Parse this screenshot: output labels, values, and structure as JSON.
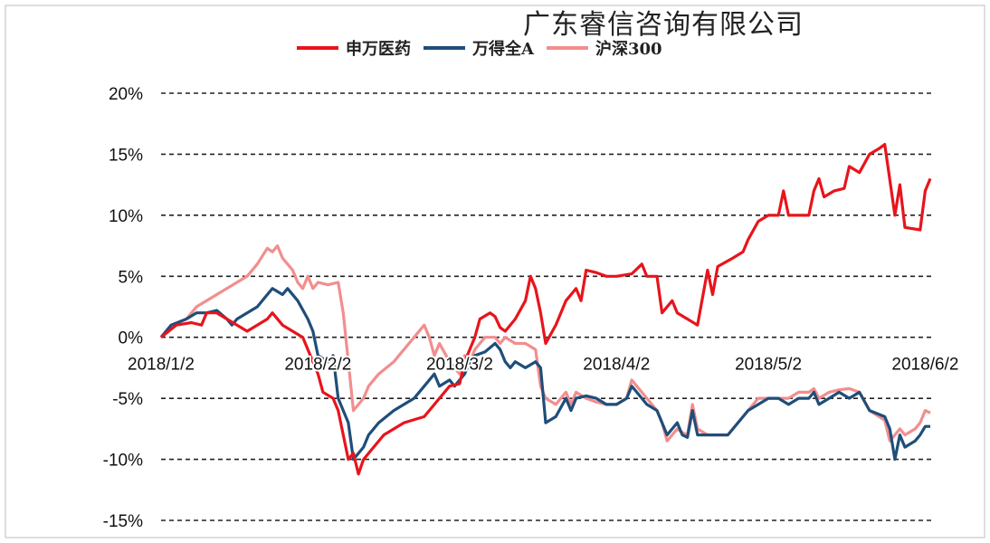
{
  "watermark": "广东睿信咨询有限公司",
  "chart_data": {
    "type": "line",
    "title": "",
    "xlabel": "",
    "ylabel": "",
    "ylim": [
      -15,
      20
    ],
    "yticks": [
      "20%",
      "15%",
      "10%",
      "5%",
      "0%",
      "-5%",
      "-10%",
      "-15%"
    ],
    "ytick_values": [
      20,
      15,
      10,
      5,
      0,
      -5,
      -10,
      -15
    ],
    "xticks": [
      "2018/1/2",
      "2018/2/2",
      "2018/3/2",
      "2018/4/2",
      "2018/5/2",
      "2018/6/2"
    ],
    "xtick_days": [
      0,
      31,
      59,
      90,
      120,
      151
    ],
    "grid": "horizontal-dashed",
    "legend_position": "top-center",
    "series": [
      {
        "name": "申万医药",
        "color": "#e8141c",
        "points": [
          [
            0,
            0
          ],
          [
            3,
            1
          ],
          [
            6,
            1.2
          ],
          [
            8,
            1
          ],
          [
            9,
            2
          ],
          [
            11,
            2
          ],
          [
            13,
            1.5
          ],
          [
            15,
            1
          ],
          [
            17,
            0.5
          ],
          [
            19,
            1
          ],
          [
            21,
            1.5
          ],
          [
            22,
            2
          ],
          [
            24,
            1
          ],
          [
            26,
            0.5
          ],
          [
            28,
            0
          ],
          [
            29,
            -1
          ],
          [
            30,
            -2
          ],
          [
            31,
            -3
          ],
          [
            32,
            -4.5
          ],
          [
            34,
            -5
          ],
          [
            35,
            -6
          ],
          [
            36,
            -8
          ],
          [
            37,
            -10
          ],
          [
            38,
            -9.5
          ],
          [
            39,
            -11.2
          ],
          [
            40,
            -10
          ],
          [
            42,
            -9
          ],
          [
            44,
            -8
          ],
          [
            48,
            -7
          ],
          [
            52,
            -6.5
          ],
          [
            55,
            -5
          ],
          [
            57,
            -4
          ],
          [
            59,
            -3.8
          ],
          [
            60,
            -2
          ],
          [
            61,
            -1
          ],
          [
            62,
            0
          ],
          [
            63,
            1.5
          ],
          [
            65,
            2
          ],
          [
            66,
            1.7
          ],
          [
            67,
            0.8
          ],
          [
            68,
            0.5
          ],
          [
            70,
            1.5
          ],
          [
            72,
            3
          ],
          [
            73,
            5
          ],
          [
            74,
            4
          ],
          [
            75,
            2
          ],
          [
            76,
            -0.5
          ],
          [
            78,
            1
          ],
          [
            80,
            3
          ],
          [
            82,
            4
          ],
          [
            83,
            3
          ],
          [
            84,
            5.5
          ],
          [
            86,
            5.3
          ],
          [
            88,
            5
          ],
          [
            90,
            5
          ],
          [
            93,
            5.2
          ],
          [
            95,
            6
          ],
          [
            96,
            5
          ],
          [
            98,
            5
          ],
          [
            99,
            2
          ],
          [
            101,
            3
          ],
          [
            102,
            2
          ],
          [
            104,
            1.5
          ],
          [
            106,
            1
          ],
          [
            108,
            5.5
          ],
          [
            109,
            3.5
          ],
          [
            110,
            5.8
          ],
          [
            113,
            6.5
          ],
          [
            115,
            7
          ],
          [
            116,
            8
          ],
          [
            118,
            9.5
          ],
          [
            120,
            10
          ],
          [
            122,
            10
          ],
          [
            123,
            12
          ],
          [
            124,
            10
          ],
          [
            126,
            10
          ],
          [
            128,
            10
          ],
          [
            129,
            12
          ],
          [
            130,
            13
          ],
          [
            131,
            11.5
          ],
          [
            133,
            12
          ],
          [
            135,
            12.2
          ],
          [
            136,
            14
          ],
          [
            138,
            13.5
          ],
          [
            140,
            15
          ],
          [
            142,
            15.5
          ],
          [
            143,
            15.8
          ],
          [
            145,
            10
          ],
          [
            146,
            12.5
          ],
          [
            147,
            9
          ],
          [
            150,
            8.8
          ],
          [
            151,
            12
          ],
          [
            152,
            13
          ]
        ]
      },
      {
        "name": "万得全A",
        "color": "#1f4e79",
        "points": [
          [
            0,
            0
          ],
          [
            2,
            1
          ],
          [
            5,
            1.5
          ],
          [
            7,
            2
          ],
          [
            9,
            2
          ],
          [
            11,
            2.2
          ],
          [
            13,
            1.5
          ],
          [
            14,
            1
          ],
          [
            15,
            1.5
          ],
          [
            17,
            2
          ],
          [
            19,
            2.5
          ],
          [
            21,
            3.5
          ],
          [
            22,
            4
          ],
          [
            24,
            3.5
          ],
          [
            25,
            4
          ],
          [
            27,
            3
          ],
          [
            29,
            1.5
          ],
          [
            30,
            0.5
          ],
          [
            31,
            -1.5
          ],
          [
            33,
            -2
          ],
          [
            34,
            -1.5
          ],
          [
            35,
            -5
          ],
          [
            36,
            -6
          ],
          [
            37,
            -7
          ],
          [
            38,
            -10
          ],
          [
            40,
            -9
          ],
          [
            41,
            -8
          ],
          [
            43,
            -7
          ],
          [
            46,
            -6
          ],
          [
            50,
            -5
          ],
          [
            52,
            -4
          ],
          [
            54,
            -3
          ],
          [
            55,
            -4
          ],
          [
            57,
            -3.5
          ],
          [
            58,
            -4
          ],
          [
            59,
            -3.5
          ],
          [
            60,
            -3
          ],
          [
            61,
            -2
          ],
          [
            62,
            -1.5
          ],
          [
            64,
            -1.2
          ],
          [
            66,
            -0.5
          ],
          [
            67,
            -1
          ],
          [
            68,
            -2
          ],
          [
            69,
            -2.5
          ],
          [
            70,
            -2
          ],
          [
            72,
            -2.5
          ],
          [
            74,
            -2
          ],
          [
            75,
            -2.5
          ],
          [
            76,
            -7
          ],
          [
            78,
            -6.5
          ],
          [
            80,
            -5
          ],
          [
            81,
            -6
          ],
          [
            82,
            -5
          ],
          [
            84,
            -4.8
          ],
          [
            86,
            -5
          ],
          [
            88,
            -5.5
          ],
          [
            90,
            -5.5
          ],
          [
            92,
            -5
          ],
          [
            93,
            -4
          ],
          [
            94,
            -4.5
          ],
          [
            96,
            -5.5
          ],
          [
            98,
            -6
          ],
          [
            99,
            -7
          ],
          [
            100,
            -8
          ],
          [
            102,
            -7
          ],
          [
            103,
            -8
          ],
          [
            104,
            -8.2
          ],
          [
            105,
            -6
          ],
          [
            106,
            -8
          ],
          [
            108,
            -8
          ],
          [
            110,
            -8
          ],
          [
            112,
            -8
          ],
          [
            114,
            -7
          ],
          [
            116,
            -6
          ],
          [
            118,
            -5.5
          ],
          [
            120,
            -5
          ],
          [
            122,
            -5
          ],
          [
            124,
            -5.5
          ],
          [
            126,
            -5
          ],
          [
            128,
            -5
          ],
          [
            129,
            -4.5
          ],
          [
            130,
            -5.5
          ],
          [
            132,
            -5
          ],
          [
            134,
            -4.5
          ],
          [
            136,
            -5
          ],
          [
            138,
            -4.5
          ],
          [
            140,
            -6
          ],
          [
            143,
            -6.5
          ],
          [
            144,
            -7.5
          ],
          [
            145,
            -10
          ],
          [
            146,
            -8
          ],
          [
            147,
            -9
          ],
          [
            149,
            -8.5
          ],
          [
            150,
            -8
          ],
          [
            151,
            -7.3
          ],
          [
            152,
            -7.3
          ]
        ]
      },
      {
        "name": "沪深300",
        "color": "#f28e8e",
        "points": [
          [
            0,
            0
          ],
          [
            2,
            1
          ],
          [
            5,
            1.5
          ],
          [
            7,
            2.5
          ],
          [
            9,
            3
          ],
          [
            11,
            3.5
          ],
          [
            13,
            4
          ],
          [
            15,
            4.5
          ],
          [
            17,
            5
          ],
          [
            19,
            6
          ],
          [
            21,
            7.3
          ],
          [
            22,
            7
          ],
          [
            23,
            7.5
          ],
          [
            24,
            6.5
          ],
          [
            25,
            6
          ],
          [
            26,
            5.5
          ],
          [
            27,
            4.5
          ],
          [
            28,
            4
          ],
          [
            29,
            5
          ],
          [
            30,
            4
          ],
          [
            31,
            4.5
          ],
          [
            33,
            4.3
          ],
          [
            35,
            4.5
          ],
          [
            36,
            2
          ],
          [
            37,
            -2
          ],
          [
            38,
            -6
          ],
          [
            40,
            -5
          ],
          [
            41,
            -4
          ],
          [
            43,
            -3
          ],
          [
            46,
            -2
          ],
          [
            50,
            0
          ],
          [
            52,
            1
          ],
          [
            53,
            0
          ],
          [
            54,
            -1.5
          ],
          [
            55,
            -0.5
          ],
          [
            57,
            -2
          ],
          [
            59,
            -3
          ],
          [
            60,
            -1.5
          ],
          [
            61,
            -2
          ],
          [
            62,
            -1
          ],
          [
            64,
            0
          ],
          [
            66,
            0
          ],
          [
            67,
            -0.5
          ],
          [
            68,
            0
          ],
          [
            70,
            -0.5
          ],
          [
            72,
            -0.5
          ],
          [
            74,
            -1
          ],
          [
            75,
            -4
          ],
          [
            76,
            -5
          ],
          [
            78,
            -5.5
          ],
          [
            80,
            -4.5
          ],
          [
            81,
            -5.5
          ],
          [
            82,
            -4.5
          ],
          [
            84,
            -5
          ],
          [
            86,
            -5.3
          ],
          [
            88,
            -5.5
          ],
          [
            90,
            -5.5
          ],
          [
            92,
            -5
          ],
          [
            93,
            -3.5
          ],
          [
            94,
            -4
          ],
          [
            96,
            -5
          ],
          [
            98,
            -6
          ],
          [
            99,
            -7
          ],
          [
            100,
            -8.5
          ],
          [
            102,
            -7.5
          ],
          [
            103,
            -7.8
          ],
          [
            104,
            -8
          ],
          [
            105,
            -5.5
          ],
          [
            106,
            -7.5
          ],
          [
            108,
            -8
          ],
          [
            110,
            -8
          ],
          [
            112,
            -8
          ],
          [
            114,
            -7
          ],
          [
            116,
            -6
          ],
          [
            118,
            -5
          ],
          [
            120,
            -5
          ],
          [
            122,
            -5
          ],
          [
            124,
            -5
          ],
          [
            126,
            -4.5
          ],
          [
            128,
            -4.5
          ],
          [
            129,
            -4.2
          ],
          [
            130,
            -5
          ],
          [
            132,
            -4.5
          ],
          [
            134,
            -4.3
          ],
          [
            136,
            -4.2
          ],
          [
            138,
            -4.5
          ],
          [
            140,
            -6
          ],
          [
            143,
            -6.8
          ],
          [
            144,
            -8.5
          ],
          [
            145,
            -8
          ],
          [
            146,
            -7.5
          ],
          [
            147,
            -8
          ],
          [
            149,
            -7.5
          ],
          [
            150,
            -7
          ],
          [
            151,
            -6
          ],
          [
            152,
            -6.2
          ]
        ]
      }
    ]
  }
}
